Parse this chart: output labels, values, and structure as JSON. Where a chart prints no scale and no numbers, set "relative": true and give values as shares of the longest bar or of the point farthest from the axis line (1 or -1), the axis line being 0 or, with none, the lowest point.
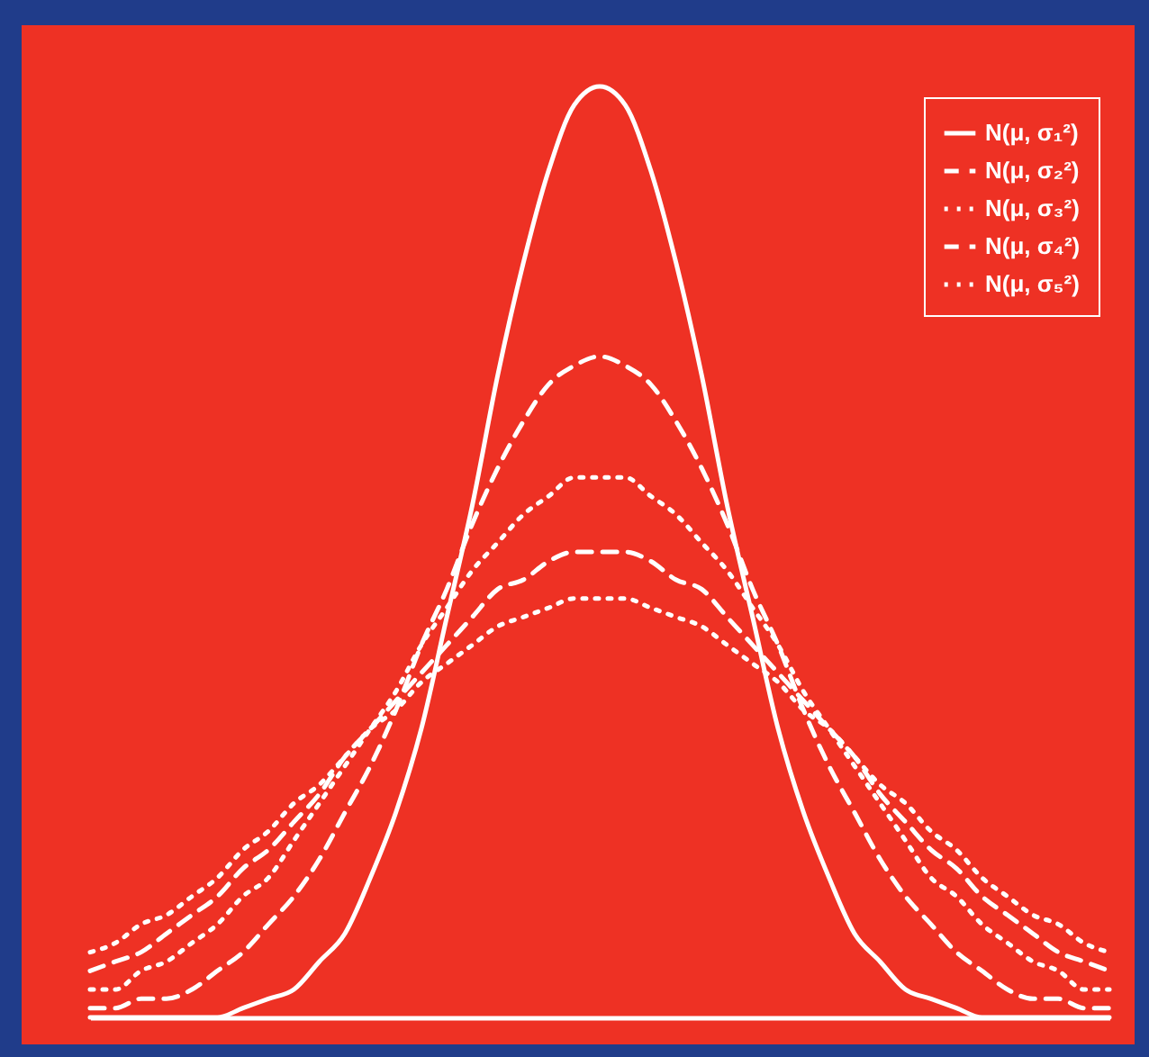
{
  "chart_data": {
    "type": "line",
    "relative": true,
    "legend": "top right",
    "grid": false,
    "categories": [
      null,
      null,
      null,
      null,
      null,
      null,
      null,
      null,
      null,
      null,
      null,
      null,
      null,
      null,
      null,
      null,
      null,
      null,
      null,
      null,
      null,
      null,
      null,
      null,
      null,
      null,
      null,
      null,
      null,
      null,
      null,
      null,
      null,
      null,
      null,
      null,
      null,
      null,
      null,
      null,
      null
    ],
    "series": [
      {
        "name": "N(μ, σ₁²)",
        "color": "#ffffff",
        "line_style": "solid",
        "values": [
          0,
          0,
          0,
          0,
          0,
          0,
          0.01,
          0.02,
          0.03,
          0.06,
          0.09,
          0.15,
          0.22,
          0.31,
          0.43,
          0.55,
          0.69,
          0.81,
          0.91,
          0.98,
          1,
          0.98,
          0.91,
          0.81,
          0.69,
          0.55,
          0.43,
          0.31,
          0.22,
          0.15,
          0.09,
          0.06,
          0.03,
          0.02,
          0.01,
          0,
          0,
          0,
          0,
          0,
          0
        ]
      },
      {
        "name": "N(μ, σ₂²)",
        "color": "#ffffff",
        "line_style": "dashed",
        "values": [
          0.01,
          0.01,
          0.02,
          0.02,
          0.03,
          0.05,
          0.07,
          0.1,
          0.13,
          0.17,
          0.22,
          0.27,
          0.33,
          0.4,
          0.46,
          0.53,
          0.59,
          0.64,
          0.68,
          0.7,
          0.71,
          0.7,
          0.68,
          0.64,
          0.59,
          0.53,
          0.46,
          0.4,
          0.33,
          0.27,
          0.22,
          0.17,
          0.13,
          0.1,
          0.07,
          0.05,
          0.03,
          0.02,
          0.02,
          0.01,
          0.01
        ]
      },
      {
        "name": "N(μ, σ₃²)",
        "color": "#ffffff",
        "line_style": "dotted",
        "values": [
          0.03,
          0.03,
          0.05,
          0.06,
          0.08,
          0.1,
          0.13,
          0.15,
          0.19,
          0.23,
          0.27,
          0.31,
          0.35,
          0.4,
          0.44,
          0.48,
          0.51,
          0.54,
          0.56,
          0.58,
          0.58,
          0.58,
          0.56,
          0.54,
          0.51,
          0.48,
          0.44,
          0.4,
          0.35,
          0.31,
          0.27,
          0.23,
          0.19,
          0.15,
          0.13,
          0.1,
          0.08,
          0.06,
          0.05,
          0.03,
          0.03
        ]
      },
      {
        "name": "N(μ, σ₄²)",
        "color": "#ffffff",
        "line_style": "dashed",
        "values": [
          0.05,
          0.06,
          0.07,
          0.09,
          0.11,
          0.13,
          0.16,
          0.18,
          0.21,
          0.24,
          0.28,
          0.31,
          0.34,
          0.37,
          0.4,
          0.43,
          0.46,
          0.47,
          0.49,
          0.5,
          0.5,
          0.5,
          0.49,
          0.47,
          0.46,
          0.43,
          0.4,
          0.37,
          0.34,
          0.31,
          0.28,
          0.24,
          0.21,
          0.18,
          0.16,
          0.13,
          0.11,
          0.09,
          0.07,
          0.06,
          0.05
        ]
      },
      {
        "name": "N(μ, σ₅²)",
        "color": "#ffffff",
        "line_style": "dotted",
        "values": [
          0.07,
          0.08,
          0.1,
          0.11,
          0.13,
          0.15,
          0.18,
          0.2,
          0.23,
          0.25,
          0.28,
          0.31,
          0.33,
          0.36,
          0.38,
          0.4,
          0.42,
          0.43,
          0.44,
          0.45,
          0.45,
          0.45,
          0.44,
          0.43,
          0.42,
          0.4,
          0.38,
          0.36,
          0.33,
          0.31,
          0.28,
          0.25,
          0.23,
          0.2,
          0.18,
          0.15,
          0.13,
          0.11,
          0.1,
          0.08,
          0.07
        ]
      }
    ]
  }
}
